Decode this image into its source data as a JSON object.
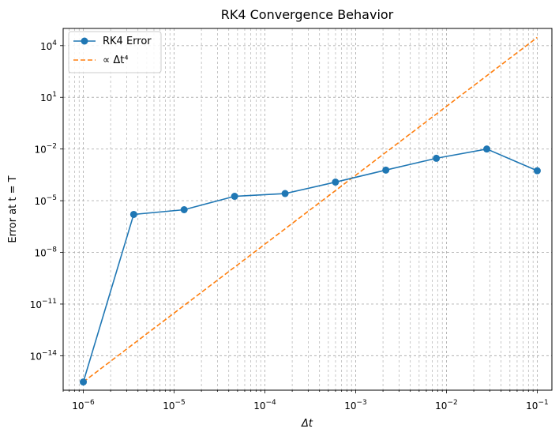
{
  "chart_data": {
    "type": "line",
    "title": "RK4 Convergence Behavior",
    "xlabel": "Δt",
    "ylabel": "Error at t = T",
    "xscale": "log",
    "yscale": "log",
    "xlim": [
      6e-07,
      0.145
    ],
    "ylim": [
      1e-16,
      100000.0
    ],
    "grid": true,
    "grid_style": "dashed",
    "legend_placement": "top-left",
    "x_ticks": [
      {
        "value": 1e-06,
        "base": "10",
        "exp": "−6"
      },
      {
        "value": 1e-05,
        "base": "10",
        "exp": "−5"
      },
      {
        "value": 0.0001,
        "base": "10",
        "exp": "−4"
      },
      {
        "value": 0.001,
        "base": "10",
        "exp": "−3"
      },
      {
        "value": 0.01,
        "base": "10",
        "exp": "−2"
      },
      {
        "value": 0.1,
        "base": "10",
        "exp": "−1"
      }
    ],
    "y_ticks": [
      {
        "value": 1e-14,
        "base": "10",
        "exp": "−14"
      },
      {
        "value": 1e-11,
        "base": "10",
        "exp": "−11"
      },
      {
        "value": 1e-08,
        "base": "10",
        "exp": "−8"
      },
      {
        "value": 1e-05,
        "base": "10",
        "exp": "−5"
      },
      {
        "value": 0.01,
        "base": "10",
        "exp": "−2"
      },
      {
        "value": 10.0,
        "base": "10",
        "exp": "1"
      },
      {
        "value": 10000.0,
        "base": "10",
        "exp": "4"
      }
    ],
    "series": [
      {
        "name": "RK4 Error",
        "color": "#1f77b4",
        "style": "solid",
        "marker": "circle",
        "x": [
          1e-06,
          3.59e-06,
          1.29e-05,
          4.64e-05,
          0.000167,
          0.000599,
          0.00215,
          0.00774,
          0.0278,
          0.1
        ],
        "y": [
          3e-16,
          1.6e-06,
          3e-06,
          1.8e-05,
          2.6e-05,
          0.00012,
          0.0006,
          0.0029,
          0.01,
          0.00055
        ]
      },
      {
        "name": "∝ Δt⁴",
        "color": "#ff7f0e",
        "style": "dashed",
        "marker": "none",
        "x": [
          1e-06,
          0.1
        ],
        "y": [
          3e-16,
          30000.0
        ]
      }
    ]
  }
}
